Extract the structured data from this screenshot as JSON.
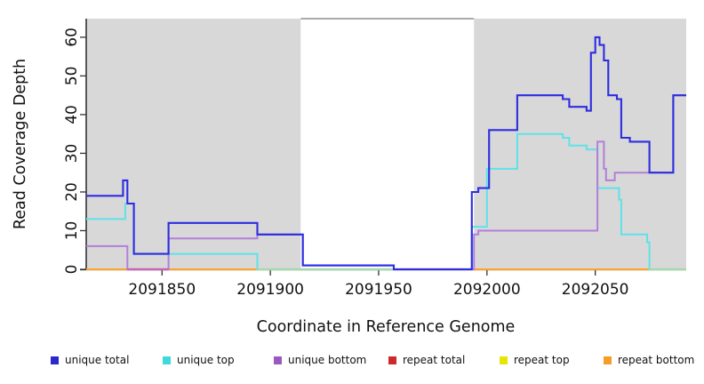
{
  "chart_data": {
    "type": "line",
    "title": "",
    "xlabel": "Coordinate in Reference Genome",
    "ylabel": "Read Coverage Depth",
    "xlim": [
      2091815,
      2092092
    ],
    "ylim": [
      0,
      64.8
    ],
    "grid": false,
    "legend_position": "bottom",
    "shaded_color": "#d8d8d8",
    "shaded_regions": [
      [
        2091815,
        2091914
      ],
      [
        2091994,
        2092092
      ]
    ],
    "gap_region": [
      2091914,
      2091994
    ],
    "x_tick_values": [
      2091850,
      2091900,
      2091950,
      2092000,
      2092050
    ],
    "x_tick_labels": [
      "2091850",
      "2091900",
      "2091950",
      "2092000",
      "2092050"
    ],
    "y_tick_values": [
      0,
      10,
      20,
      30,
      40,
      50,
      60
    ],
    "y_tick_labels": [
      "0",
      "10",
      "20",
      "30",
      "40",
      "50",
      "60"
    ],
    "series": [
      {
        "name": "repeat total",
        "color": "#cc2929",
        "points": [
          [
            2091815,
            0
          ]
        ]
      },
      {
        "name": "repeat top",
        "color": "#e6e600",
        "points": [
          [
            2091815,
            0
          ]
        ]
      },
      {
        "name": "repeat bottom",
        "color": "#ffa226",
        "points": [
          [
            2091815,
            0
          ]
        ]
      },
      {
        "name": "unique top",
        "color": "#5ee2e8",
        "points": [
          [
            2091815,
            13
          ],
          [
            2091833,
            17
          ],
          [
            2091837,
            4
          ],
          [
            2091894,
            0
          ],
          [
            2091993,
            11
          ],
          [
            2092000,
            26
          ],
          [
            2092014,
            35
          ],
          [
            2092035,
            34
          ],
          [
            2092038,
            32
          ],
          [
            2092046,
            31
          ],
          [
            2092051,
            21
          ],
          [
            2092061,
            18
          ],
          [
            2092062,
            9
          ],
          [
            2092074,
            7
          ],
          [
            2092075,
            0
          ]
        ]
      },
      {
        "name": "unique bottom",
        "color": "#b27fd9",
        "points": [
          [
            2091815,
            6
          ],
          [
            2091834,
            0
          ],
          [
            2091853,
            8
          ],
          [
            2091894,
            9
          ],
          [
            2091915,
            1
          ],
          [
            2091957,
            0
          ],
          [
            2091994,
            9
          ],
          [
            2091996,
            10
          ],
          [
            2092051,
            33
          ],
          [
            2092054,
            26
          ],
          [
            2092055,
            23
          ],
          [
            2092059,
            25
          ],
          [
            2092086,
            45
          ]
        ]
      },
      {
        "name": "unique total",
        "color": "#2d2de0",
        "points": [
          [
            2091815,
            19
          ],
          [
            2091832,
            23
          ],
          [
            2091834,
            17
          ],
          [
            2091837,
            4
          ],
          [
            2091853,
            12
          ],
          [
            2091894,
            9
          ],
          [
            2091915,
            1
          ],
          [
            2091957,
            0
          ],
          [
            2091993,
            20
          ],
          [
            2091996,
            21
          ],
          [
            2092001,
            36
          ],
          [
            2092014,
            45
          ],
          [
            2092035,
            44
          ],
          [
            2092038,
            42
          ],
          [
            2092046,
            41
          ],
          [
            2092048,
            56
          ],
          [
            2092050,
            60
          ],
          [
            2092052,
            58
          ],
          [
            2092054,
            54
          ],
          [
            2092056,
            45
          ],
          [
            2092060,
            44
          ],
          [
            2092062,
            34
          ],
          [
            2092066,
            33
          ],
          [
            2092075,
            25
          ],
          [
            2092086,
            45
          ]
        ]
      }
    ],
    "baseline_overlays": [
      {
        "from": 2091834,
        "to": 2091853,
        "color": "#c466b4"
      },
      {
        "from": 2091894,
        "to": 2091957,
        "color": "#a8d8ae"
      },
      {
        "from": 2091957,
        "to": 2091993,
        "color": "#9b7fe0"
      },
      {
        "from": 2092075,
        "to": 2092092,
        "color": "#a8d8ae"
      }
    ],
    "legend": [
      {
        "label": "unique total",
        "color": "#2929cc"
      },
      {
        "label": "unique top",
        "color": "#3fd9dd"
      },
      {
        "label": "unique bottom",
        "color": "#9b59c0"
      },
      {
        "label": "repeat total",
        "color": "#cc2929"
      },
      {
        "label": "repeat top",
        "color": "#e6e600"
      },
      {
        "label": "repeat bottom",
        "color": "#f59d25"
      }
    ]
  }
}
